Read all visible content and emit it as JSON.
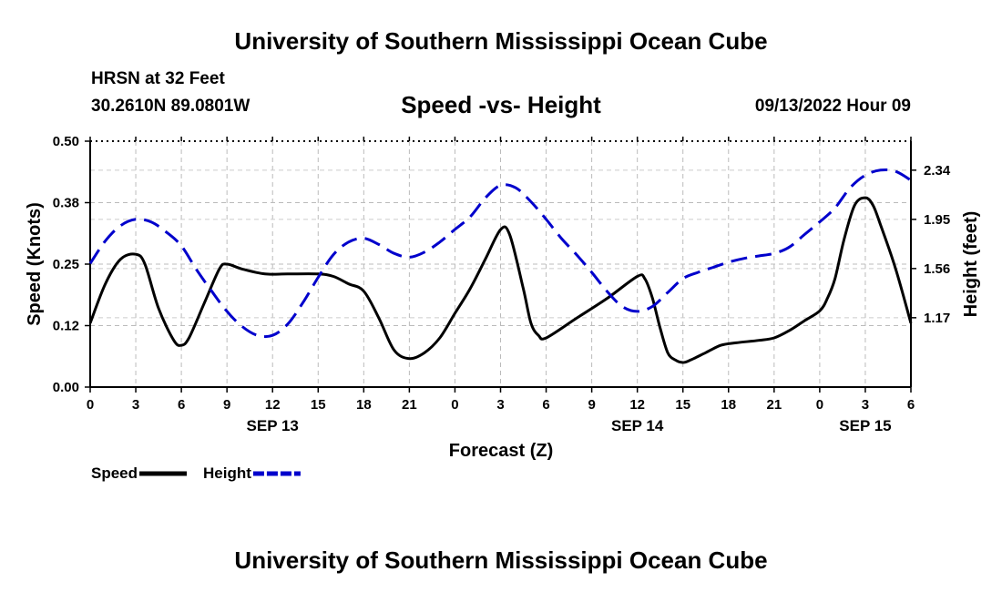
{
  "header": {
    "title_top": "University of Southern Mississippi Ocean Cube",
    "title_bottom": "University of Southern Mississippi Ocean Cube",
    "station": "HRSN at 32 Feet",
    "coords": "30.2610N  89.0801W",
    "datetime": "09/13/2022 Hour 09"
  },
  "chart_data": {
    "type": "line",
    "title": "Speed -vs- Height",
    "xlabel": "Forecast (Z)",
    "ylabel": "Speed (Knots)",
    "y2label": "Height (feet)",
    "x_hours": [
      0,
      54
    ],
    "ylim": [
      0,
      0.5
    ],
    "y2lim": [
      0.62,
      2.57
    ],
    "yticks": [
      "0.00",
      "0.12",
      "0.25",
      "0.38",
      "0.50"
    ],
    "y2ticks": [
      "1.17",
      "1.56",
      "1.95",
      "2.34"
    ],
    "y2tick_values": [
      1.17,
      1.56,
      1.95,
      2.34
    ],
    "xtick_labels": [
      "0",
      "3",
      "6",
      "9",
      "12",
      "15",
      "18",
      "21",
      "0",
      "3",
      "6",
      "9",
      "12",
      "15",
      "18",
      "21",
      "0",
      "3",
      "6"
    ],
    "date_labels": [
      {
        "label": "SEP 13",
        "hour": 12
      },
      {
        "label": "SEP 14",
        "hour": 36
      },
      {
        "label": "SEP 15",
        "hour": 51
      }
    ],
    "grid": true,
    "series": [
      {
        "name": "Speed",
        "axis": "left",
        "color": "#000000",
        "dash": "solid",
        "points": [
          [
            0,
            0.13
          ],
          [
            1,
            0.21
          ],
          [
            2,
            0.26
          ],
          [
            3,
            0.27
          ],
          [
            3.6,
            0.25
          ],
          [
            4.5,
            0.16
          ],
          [
            5.5,
            0.095
          ],
          [
            6,
            0.085
          ],
          [
            6.5,
            0.1
          ],
          [
            7.5,
            0.17
          ],
          [
            8.5,
            0.24
          ],
          [
            9,
            0.25
          ],
          [
            10,
            0.24
          ],
          [
            11.5,
            0.23
          ],
          [
            13,
            0.23
          ],
          [
            15,
            0.23
          ],
          [
            16,
            0.225
          ],
          [
            17,
            0.21
          ],
          [
            18,
            0.195
          ],
          [
            19,
            0.14
          ],
          [
            20,
            0.075
          ],
          [
            21,
            0.058
          ],
          [
            22,
            0.07
          ],
          [
            23,
            0.1
          ],
          [
            24,
            0.15
          ],
          [
            25,
            0.2
          ],
          [
            26,
            0.26
          ],
          [
            27,
            0.32
          ],
          [
            27.6,
            0.31
          ],
          [
            28.5,
            0.2
          ],
          [
            29,
            0.13
          ],
          [
            29.5,
            0.105
          ],
          [
            30,
            0.1
          ],
          [
            32,
            0.14
          ],
          [
            34,
            0.18
          ],
          [
            36,
            0.225
          ],
          [
            36.5,
            0.22
          ],
          [
            37,
            0.18
          ],
          [
            37.5,
            0.12
          ],
          [
            38,
            0.07
          ],
          [
            38.5,
            0.055
          ],
          [
            39,
            0.05
          ],
          [
            39.5,
            0.055
          ],
          [
            40.5,
            0.07
          ],
          [
            41.5,
            0.085
          ],
          [
            42.5,
            0.09
          ],
          [
            44,
            0.095
          ],
          [
            45,
            0.1
          ],
          [
            46,
            0.115
          ],
          [
            47,
            0.135
          ],
          [
            48,
            0.155
          ],
          [
            48.5,
            0.18
          ],
          [
            49,
            0.22
          ],
          [
            49.6,
            0.3
          ],
          [
            50.3,
            0.37
          ],
          [
            51,
            0.385
          ],
          [
            51.5,
            0.37
          ],
          [
            52,
            0.33
          ],
          [
            53,
            0.24
          ],
          [
            54,
            0.13
          ]
        ]
      },
      {
        "name": "Height",
        "axis": "right",
        "color": "#0000cc",
        "dash": "dashed",
        "points": [
          [
            0,
            1.6
          ],
          [
            1,
            1.78
          ],
          [
            2,
            1.9
          ],
          [
            3,
            1.95
          ],
          [
            4,
            1.93
          ],
          [
            5,
            1.85
          ],
          [
            6,
            1.74
          ],
          [
            7,
            1.55
          ],
          [
            8,
            1.38
          ],
          [
            9,
            1.22
          ],
          [
            10,
            1.1
          ],
          [
            11,
            1.03
          ],
          [
            12,
            1.03
          ],
          [
            13,
            1.12
          ],
          [
            14,
            1.29
          ],
          [
            15,
            1.49
          ],
          [
            16,
            1.67
          ],
          [
            17,
            1.77
          ],
          [
            18,
            1.8
          ],
          [
            19,
            1.75
          ],
          [
            20,
            1.68
          ],
          [
            21,
            1.65
          ],
          [
            22,
            1.69
          ],
          [
            23,
            1.77
          ],
          [
            24,
            1.87
          ],
          [
            25,
            1.97
          ],
          [
            26,
            2.12
          ],
          [
            27,
            2.22
          ],
          [
            28,
            2.2
          ],
          [
            29,
            2.09
          ],
          [
            30,
            1.95
          ],
          [
            31,
            1.8
          ],
          [
            32,
            1.67
          ],
          [
            33,
            1.53
          ],
          [
            34,
            1.38
          ],
          [
            35,
            1.26
          ],
          [
            36,
            1.22
          ],
          [
            37,
            1.26
          ],
          [
            38,
            1.37
          ],
          [
            39,
            1.48
          ],
          [
            40,
            1.53
          ],
          [
            41,
            1.57
          ],
          [
            42,
            1.61
          ],
          [
            43,
            1.64
          ],
          [
            44,
            1.66
          ],
          [
            45,
            1.68
          ],
          [
            46,
            1.73
          ],
          [
            47,
            1.83
          ],
          [
            48,
            1.93
          ],
          [
            49,
            2.04
          ],
          [
            50,
            2.2
          ],
          [
            51,
            2.3
          ],
          [
            52,
            2.34
          ],
          [
            53,
            2.33
          ],
          [
            54,
            2.26
          ]
        ]
      }
    ],
    "legend": [
      {
        "label": "Speed",
        "color": "#000000",
        "dash": "solid"
      },
      {
        "label": "Height",
        "color": "#0000cc",
        "dash": "dashed"
      }
    ]
  }
}
